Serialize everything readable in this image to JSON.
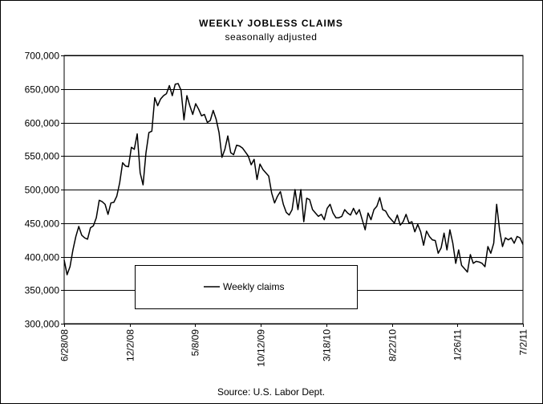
{
  "chart_data": {
    "type": "line",
    "title": "WEEKLY JOBLESS CLAIMS",
    "subtitle": "seasonally adjusted",
    "source": "Source: U.S. Labor Dept.",
    "legend": "bottom-left",
    "grid": true,
    "ylim": [
      300000,
      700000
    ],
    "yticks": [
      {
        "value": 300000,
        "label": "300,000"
      },
      {
        "value": 350000,
        "label": "350,000"
      },
      {
        "value": 400000,
        "label": "400,000"
      },
      {
        "value": 450000,
        "label": "450,000"
      },
      {
        "value": 500000,
        "label": "500,000"
      },
      {
        "value": 550000,
        "label": "550,000"
      },
      {
        "value": 600000,
        "label": "600,000"
      },
      {
        "value": 650000,
        "label": "650,000"
      },
      {
        "value": 700000,
        "label": "700,000"
      }
    ],
    "xlim": [
      "2008-06-28",
      "2011-07-02"
    ],
    "xticks": [
      {
        "value": "2008-06-28",
        "label": "6/28/08"
      },
      {
        "value": "2008-12-02",
        "label": "12/2/08"
      },
      {
        "value": "2009-05-08",
        "label": "5/8/09"
      },
      {
        "value": "2009-10-12",
        "label": "10/12/09"
      },
      {
        "value": "2010-03-18",
        "label": "3/18/10"
      },
      {
        "value": "2010-08-22",
        "label": "8/22/10"
      },
      {
        "value": "2011-01-26",
        "label": "1/26/11"
      },
      {
        "value": "2011-07-02",
        "label": "7/2/11"
      }
    ],
    "x": [
      "2008-06-28",
      "2008-07-05",
      "2008-07-12",
      "2008-07-19",
      "2008-07-26",
      "2008-08-02",
      "2008-08-09",
      "2008-08-16",
      "2008-08-23",
      "2008-08-30",
      "2008-09-06",
      "2008-09-13",
      "2008-09-20",
      "2008-09-27",
      "2008-10-04",
      "2008-10-11",
      "2008-10-18",
      "2008-10-25",
      "2008-11-01",
      "2008-11-08",
      "2008-11-15",
      "2008-11-22",
      "2008-11-29",
      "2008-12-06",
      "2008-12-13",
      "2008-12-20",
      "2008-12-27",
      "2009-01-03",
      "2009-01-10",
      "2009-01-17",
      "2009-01-24",
      "2009-01-31",
      "2009-02-07",
      "2009-02-14",
      "2009-02-21",
      "2009-02-28",
      "2009-03-07",
      "2009-03-14",
      "2009-03-21",
      "2009-03-28",
      "2009-04-04",
      "2009-04-11",
      "2009-04-18",
      "2009-04-25",
      "2009-05-02",
      "2009-05-09",
      "2009-05-16",
      "2009-05-23",
      "2009-05-30",
      "2009-06-06",
      "2009-06-13",
      "2009-06-20",
      "2009-06-27",
      "2009-07-04",
      "2009-07-11",
      "2009-07-18",
      "2009-07-25",
      "2009-08-01",
      "2009-08-08",
      "2009-08-15",
      "2009-08-22",
      "2009-08-29",
      "2009-09-05",
      "2009-09-12",
      "2009-09-19",
      "2009-09-26",
      "2009-10-03",
      "2009-10-10",
      "2009-10-17",
      "2009-10-24",
      "2009-10-31",
      "2009-11-07",
      "2009-11-14",
      "2009-11-21",
      "2009-11-28",
      "2009-12-05",
      "2009-12-12",
      "2009-12-19",
      "2009-12-26",
      "2010-01-02",
      "2010-01-09",
      "2010-01-16",
      "2010-01-23",
      "2010-01-30",
      "2010-02-06",
      "2010-02-13",
      "2010-02-20",
      "2010-02-27",
      "2010-03-06",
      "2010-03-13",
      "2010-03-20",
      "2010-03-27",
      "2010-04-03",
      "2010-04-10",
      "2010-04-17",
      "2010-04-24",
      "2010-05-01",
      "2010-05-08",
      "2010-05-15",
      "2010-05-22",
      "2010-05-29",
      "2010-06-05",
      "2010-06-12",
      "2010-06-19",
      "2010-06-26",
      "2010-07-03",
      "2010-07-10",
      "2010-07-17",
      "2010-07-24",
      "2010-07-31",
      "2010-08-07",
      "2010-08-14",
      "2010-08-21",
      "2010-08-28",
      "2010-09-04",
      "2010-09-11",
      "2010-09-18",
      "2010-09-25",
      "2010-10-02",
      "2010-10-09",
      "2010-10-16",
      "2010-10-23",
      "2010-10-30",
      "2010-11-06",
      "2010-11-13",
      "2010-11-20",
      "2010-11-27",
      "2010-12-04",
      "2010-12-11",
      "2010-12-18",
      "2010-12-25",
      "2011-01-01",
      "2011-01-08",
      "2011-01-15",
      "2011-01-22",
      "2011-01-29",
      "2011-02-05",
      "2011-02-12",
      "2011-02-19",
      "2011-02-26",
      "2011-03-05",
      "2011-03-12",
      "2011-03-19",
      "2011-03-26",
      "2011-04-02",
      "2011-04-09",
      "2011-04-16",
      "2011-04-23",
      "2011-04-30",
      "2011-05-07",
      "2011-05-14",
      "2011-05-21",
      "2011-05-28",
      "2011-06-04",
      "2011-06-11",
      "2011-06-18",
      "2011-06-25",
      "2011-07-02"
    ],
    "series": [
      {
        "name": "Weekly claims",
        "color": "#000000",
        "values": [
          395000,
          373000,
          385000,
          410000,
          430000,
          445000,
          432000,
          428000,
          426000,
          443000,
          446000,
          458000,
          484000,
          482000,
          478000,
          463000,
          480000,
          481000,
          490000,
          510000,
          540000,
          535000,
          534000,
          563000,
          560000,
          583000,
          525000,
          507000,
          555000,
          585000,
          587000,
          637000,
          625000,
          635000,
          640000,
          643000,
          655000,
          640000,
          657000,
          658000,
          648000,
          604000,
          640000,
          625000,
          612000,
          628000,
          620000,
          610000,
          612000,
          600000,
          603000,
          618000,
          605000,
          585000,
          548000,
          560000,
          580000,
          555000,
          552000,
          566000,
          565000,
          562000,
          556000,
          550000,
          537000,
          545000,
          515000,
          538000,
          530000,
          525000,
          520000,
          495000,
          480000,
          490000,
          497000,
          478000,
          466000,
          462000,
          470000,
          500000,
          470000,
          500000,
          452000,
          487000,
          485000,
          470000,
          465000,
          460000,
          463000,
          455000,
          472000,
          478000,
          465000,
          458000,
          458000,
          460000,
          470000,
          465000,
          462000,
          472000,
          463000,
          470000,
          455000,
          440000,
          465000,
          455000,
          470000,
          475000,
          488000,
          470000,
          468000,
          460000,
          455000,
          450000,
          462000,
          447000,
          452000,
          463000,
          450000,
          452000,
          437000,
          448000,
          437000,
          417000,
          438000,
          430000,
          425000,
          424000,
          405000,
          413000,
          435000,
          410000,
          440000,
          420000,
          390000,
          410000,
          387000,
          382000,
          377000,
          403000,
          390000,
          393000,
          392000,
          390000,
          385000,
          415000,
          405000,
          420000,
          478000,
          440000,
          415000,
          428000,
          425000,
          428000,
          420000,
          430000,
          428000,
          418000
        ]
      }
    ]
  }
}
